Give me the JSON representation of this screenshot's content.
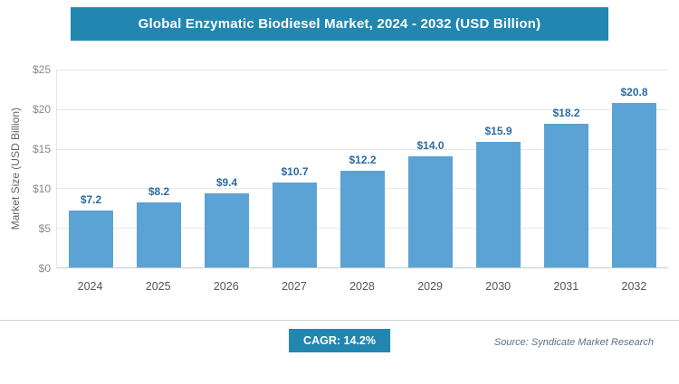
{
  "title": "Global Enzymatic Biodiesel Market, 2024 - 2032 (USD Billion)",
  "chart_data": {
    "type": "bar",
    "title": "Global Enzymatic Biodiesel Market, 2024 - 2032 (USD Billion)",
    "categories": [
      "2024",
      "2025",
      "2026",
      "2027",
      "2028",
      "2029",
      "2030",
      "2031",
      "2032"
    ],
    "values": [
      7.2,
      8.2,
      9.4,
      10.7,
      12.2,
      14.0,
      15.9,
      18.2,
      20.8
    ],
    "value_labels": [
      "$7.2",
      "$8.2",
      "$9.4",
      "$10.7",
      "$12.2",
      "$14.0",
      "$15.9",
      "$18.2",
      "$20.8"
    ],
    "xlabel": "",
    "ylabel": "Market Size (USD Billion)",
    "ylim": [
      0,
      25
    ],
    "yticks": [
      0,
      5,
      10,
      15,
      20,
      25
    ],
    "ytick_labels": [
      "$0",
      "$5",
      "$10",
      "$15",
      "$20",
      "$25"
    ],
    "grid": true,
    "legend": "none"
  },
  "footer": {
    "cagr_label": "CAGR: 14.2%",
    "source": "Source: Syndicate Market Research"
  },
  "colors": {
    "banner": "#2187b0",
    "bar": "#5ba3d4",
    "value_label": "#2b6ca3"
  }
}
